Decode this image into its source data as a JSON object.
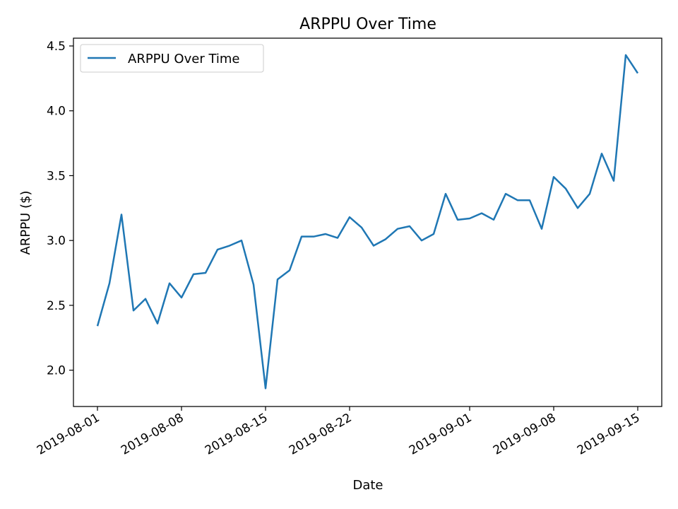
{
  "chart_data": {
    "type": "line",
    "title": "ARPPU Over Time",
    "xlabel": "Date",
    "ylabel": "ARPPU ($)",
    "grid": false,
    "legend_position": "top-left",
    "ylim": [
      1.72,
      4.56
    ],
    "xlim": [
      "2019-07-30",
      "2019-09-17"
    ],
    "y_ticks": [
      "2.0",
      "2.5",
      "3.0",
      "3.5",
      "4.0",
      "4.5"
    ],
    "x_ticks": [
      "2019-08-01",
      "2019-08-08",
      "2019-08-15",
      "2019-08-22",
      "2019-09-01",
      "2019-09-08",
      "2019-09-15"
    ],
    "series": [
      {
        "name": "ARPPU Over Time",
        "color": "#1f77b4",
        "x": [
          "2019-08-01",
          "2019-08-02",
          "2019-08-03",
          "2019-08-04",
          "2019-08-05",
          "2019-08-06",
          "2019-08-07",
          "2019-08-08",
          "2019-08-09",
          "2019-08-10",
          "2019-08-11",
          "2019-08-12",
          "2019-08-13",
          "2019-08-14",
          "2019-08-15",
          "2019-08-16",
          "2019-08-17",
          "2019-08-18",
          "2019-08-19",
          "2019-08-20",
          "2019-08-21",
          "2019-08-22",
          "2019-08-23",
          "2019-08-24",
          "2019-08-25",
          "2019-08-26",
          "2019-08-27",
          "2019-08-28",
          "2019-08-29",
          "2019-08-30",
          "2019-08-31",
          "2019-09-01",
          "2019-09-02",
          "2019-09-03",
          "2019-09-04",
          "2019-09-05",
          "2019-09-06",
          "2019-09-07",
          "2019-09-08",
          "2019-09-09",
          "2019-09-10",
          "2019-09-11",
          "2019-09-12",
          "2019-09-13",
          "2019-09-14",
          "2019-09-15"
        ],
        "values": [
          2.34,
          2.67,
          3.2,
          2.46,
          2.55,
          2.36,
          2.67,
          2.56,
          2.74,
          2.75,
          2.93,
          2.96,
          3.0,
          2.66,
          1.86,
          2.7,
          2.77,
          3.03,
          3.03,
          3.05,
          3.02,
          3.18,
          3.1,
          2.96,
          3.01,
          3.09,
          3.11,
          3.0,
          3.05,
          3.36,
          3.16,
          3.17,
          3.21,
          3.16,
          3.36,
          3.31,
          3.31,
          3.09,
          3.49,
          3.4,
          3.25,
          3.36,
          3.67,
          3.46,
          4.43,
          4.29
        ]
      }
    ]
  }
}
